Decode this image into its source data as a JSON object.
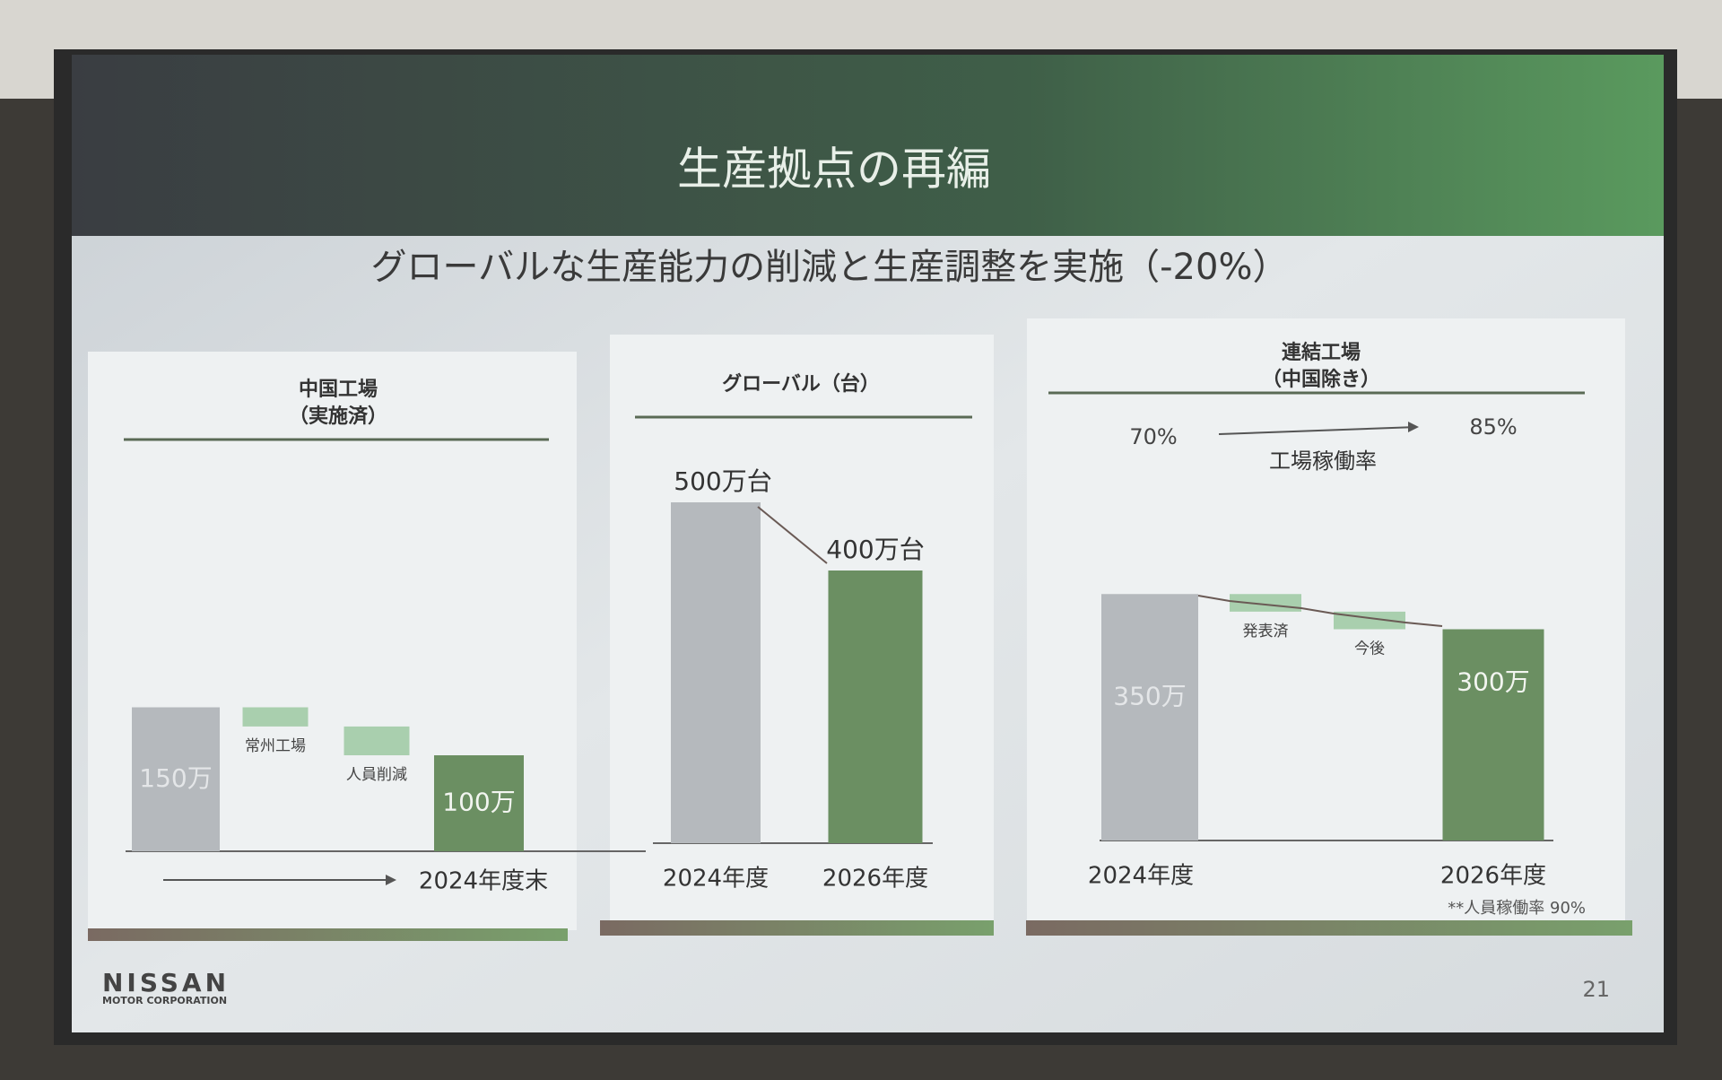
{
  "slide": {
    "title": "生産拠点の再編",
    "subtitle": "グローバルな生産能力の削減と生産調整を実施（-20%）",
    "logo": "NISSAN",
    "logo_sub": "MOTOR CORPORATION",
    "page": "21"
  },
  "chart_data": [
    {
      "type": "waterfall",
      "title": "中国工場",
      "subtitle": "（実施済）",
      "categories": [
        null,
        "常州工場",
        "人員削減",
        null
      ],
      "values": [
        150,
        -20,
        -30,
        100
      ],
      "value_labels": [
        "150万",
        null,
        null,
        "100万"
      ],
      "axis_note": "2024年度末"
    },
    {
      "type": "bar",
      "title": "グローバル（台）",
      "categories": [
        "2024年度",
        "2026年度"
      ],
      "values": [
        500,
        400
      ],
      "value_labels": [
        "500万台",
        "400万台"
      ]
    },
    {
      "type": "waterfall",
      "title": "連結工場",
      "subtitle": "（中国除き）",
      "categories": [
        "2024年度",
        "発表済",
        "今後",
        "2026年度"
      ],
      "values": [
        350,
        -25,
        -25,
        300
      ],
      "value_labels": [
        "350万",
        null,
        null,
        "300万"
      ],
      "rate_label": "工場稼働率",
      "rate_values": [
        70,
        85
      ],
      "rate_value_labels": [
        "70%",
        "85%"
      ],
      "note": "**人員稼働率 90%"
    }
  ]
}
